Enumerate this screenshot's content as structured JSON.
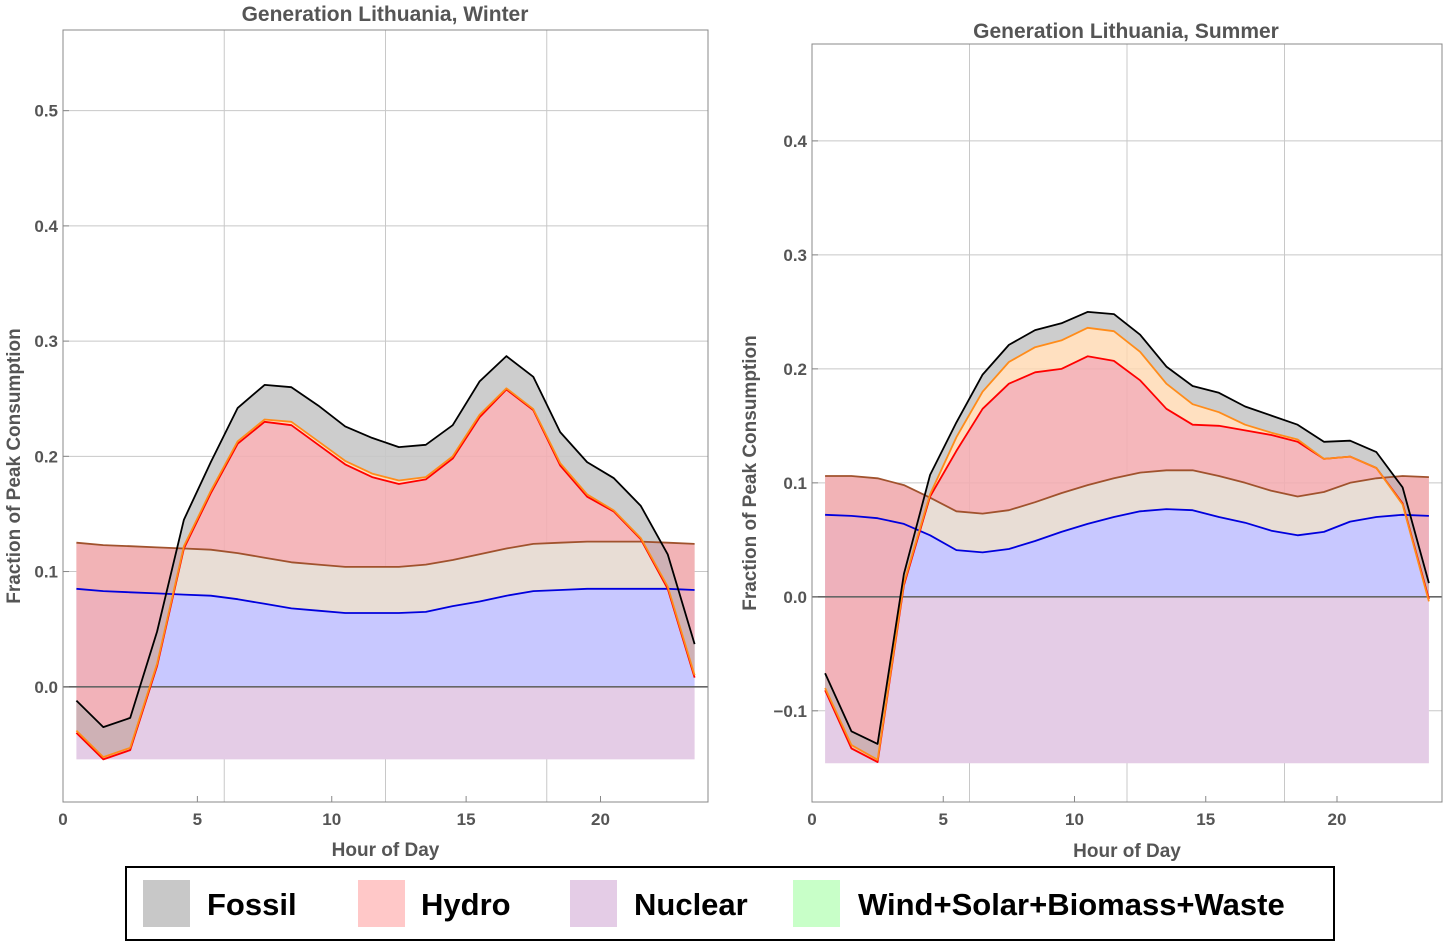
{
  "chart_data": [
    {
      "type": "area",
      "title": "Generation Lithuania,  Winter",
      "xlabel": "Hour of Day",
      "ylabel": "Fraction of Peak Consumption",
      "xlim": [
        0,
        24
      ],
      "ylim": [
        -0.1,
        0.57
      ],
      "xticks": [
        0,
        5,
        10,
        15,
        20
      ],
      "yticks": [
        0.0,
        0.1,
        0.2,
        0.3,
        0.4,
        0.5
      ],
      "ytick_labels": [
        "0.0",
        "0.1",
        "0.2",
        "0.3",
        "0.4",
        "0.5"
      ],
      "grid": true,
      "x": [
        0.5,
        1.5,
        2.5,
        3.5,
        4.5,
        5.5,
        6.5,
        7.5,
        8.5,
        9.5,
        10.5,
        11.5,
        12.5,
        13.5,
        14.5,
        15.5,
        16.5,
        17.5,
        18.5,
        19.5,
        20.5,
        21.5,
        22.5,
        23.5
      ],
      "nuclear_base": -0.063,
      "series": [
        {
          "name": "blue-line",
          "color": "#0000dd",
          "values": [
            0.085,
            0.083,
            0.082,
            0.081,
            0.08,
            0.079,
            0.076,
            0.072,
            0.068,
            0.066,
            0.064,
            0.064,
            0.064,
            0.065,
            0.07,
            0.074,
            0.079,
            0.083,
            0.084,
            0.085,
            0.085,
            0.085,
            0.085,
            0.084
          ]
        },
        {
          "name": "brown-line",
          "color": "#a0522d",
          "values": [
            0.125,
            0.123,
            0.122,
            0.121,
            0.12,
            0.119,
            0.116,
            0.112,
            0.108,
            0.106,
            0.104,
            0.104,
            0.104,
            0.106,
            0.11,
            0.115,
            0.12,
            0.124,
            0.125,
            0.126,
            0.126,
            0.126,
            0.125,
            0.124
          ]
        },
        {
          "name": "red-line",
          "color": "#ff0000",
          "values": [
            -0.04,
            -0.063,
            -0.055,
            0.018,
            0.12,
            0.168,
            0.211,
            0.23,
            0.227,
            0.21,
            0.193,
            0.182,
            0.176,
            0.18,
            0.198,
            0.234,
            0.258,
            0.24,
            0.192,
            0.165,
            0.152,
            0.128,
            0.085,
            0.008
          ]
        },
        {
          "name": "orange-line",
          "color": "#ff8c1a",
          "values": [
            -0.038,
            -0.061,
            -0.053,
            0.02,
            0.122,
            0.17,
            0.213,
            0.232,
            0.23,
            0.213,
            0.196,
            0.185,
            0.179,
            0.182,
            0.2,
            0.236,
            0.259,
            0.241,
            0.194,
            0.167,
            0.153,
            0.129,
            0.087,
            0.01
          ]
        },
        {
          "name": "black-line",
          "color": "#000000",
          "values": [
            -0.012,
            -0.035,
            -0.027,
            0.048,
            0.145,
            0.195,
            0.242,
            0.262,
            0.26,
            0.244,
            0.226,
            0.216,
            0.208,
            0.21,
            0.227,
            0.265,
            0.287,
            0.269,
            0.221,
            0.195,
            0.181,
            0.157,
            0.115,
            0.037
          ]
        }
      ]
    },
    {
      "type": "area",
      "title": "Generation Lithuania,  Summer",
      "xlabel": "Hour of Day",
      "ylabel": "Fraction of Peak Consumption",
      "xlim": [
        0,
        24
      ],
      "ylim": [
        -0.18,
        0.485
      ],
      "xticks": [
        0,
        5,
        10,
        15,
        20
      ],
      "yticks": [
        -0.1,
        0.0,
        0.1,
        0.2,
        0.3,
        0.4
      ],
      "ytick_labels": [
        "−0.1",
        "0.0",
        "0.1",
        "0.2",
        "0.3",
        "0.4"
      ],
      "grid": true,
      "x": [
        0.5,
        1.5,
        2.5,
        3.5,
        4.5,
        5.5,
        6.5,
        7.5,
        8.5,
        9.5,
        10.5,
        11.5,
        12.5,
        13.5,
        14.5,
        15.5,
        16.5,
        17.5,
        18.5,
        19.5,
        20.5,
        21.5,
        22.5,
        23.5
      ],
      "nuclear_base": -0.146,
      "series": [
        {
          "name": "blue-line",
          "color": "#0000dd",
          "values": [
            0.072,
            0.071,
            0.069,
            0.064,
            0.054,
            0.041,
            0.039,
            0.042,
            0.049,
            0.057,
            0.064,
            0.07,
            0.075,
            0.077,
            0.076,
            0.07,
            0.065,
            0.058,
            0.054,
            0.057,
            0.066,
            0.07,
            0.072,
            0.071
          ]
        },
        {
          "name": "brown-line",
          "color": "#a0522d",
          "values": [
            0.106,
            0.106,
            0.104,
            0.098,
            0.087,
            0.075,
            0.073,
            0.076,
            0.083,
            0.091,
            0.098,
            0.104,
            0.109,
            0.111,
            0.111,
            0.106,
            0.1,
            0.093,
            0.088,
            0.092,
            0.1,
            0.104,
            0.106,
            0.105
          ]
        },
        {
          "name": "red-line",
          "color": "#ff0000",
          "values": [
            -0.082,
            -0.133,
            -0.145,
            0.01,
            0.088,
            0.128,
            0.165,
            0.187,
            0.197,
            0.2,
            0.211,
            0.207,
            0.19,
            0.165,
            0.151,
            0.15,
            0.146,
            0.142,
            0.136,
            0.121,
            0.123,
            0.113,
            0.082,
            -0.002
          ]
        },
        {
          "name": "orange-line",
          "color": "#ff8c1a",
          "values": [
            -0.08,
            -0.13,
            -0.143,
            0.012,
            0.09,
            0.14,
            0.18,
            0.206,
            0.219,
            0.225,
            0.236,
            0.233,
            0.215,
            0.187,
            0.169,
            0.162,
            0.151,
            0.144,
            0.138,
            0.121,
            0.123,
            0.113,
            0.081,
            -0.004
          ]
        },
        {
          "name": "black-line",
          "color": "#000000",
          "values": [
            -0.067,
            -0.118,
            -0.129,
            0.02,
            0.107,
            0.153,
            0.195,
            0.221,
            0.234,
            0.24,
            0.25,
            0.248,
            0.23,
            0.202,
            0.185,
            0.179,
            0.167,
            0.159,
            0.151,
            0.136,
            0.137,
            0.127,
            0.096,
            0.012
          ]
        }
      ]
    }
  ],
  "legend": {
    "items": [
      {
        "label": "Fossil",
        "color": "#c8c8c8"
      },
      {
        "label": "Hydro",
        "color": "#ffc8c8"
      },
      {
        "label": "Nuclear",
        "color": "#e4cce6"
      },
      {
        "label": "Wind+Solar+Biomass+Waste",
        "color": "#c8ffc8"
      }
    ]
  },
  "fill_colors": {
    "fossil": "#c8c8c8",
    "hydro": "#ffc8c8",
    "nuclear": "#e4cce6",
    "blue_band": "#c8c8ff",
    "tan_band": "#e8ddd5",
    "brown_overlap": "#e8aeae"
  }
}
